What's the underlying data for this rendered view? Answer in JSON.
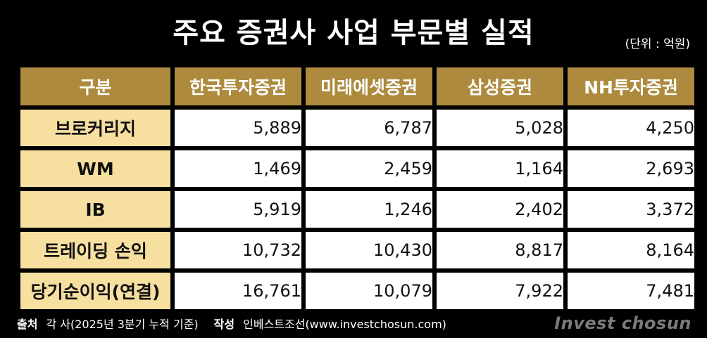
{
  "title": "주요 증권사 사업 부문별 실적",
  "unit": "(단위 : 억원)",
  "chart_data": {
    "type": "table",
    "title": "주요 증권사 사업 부문별 실적",
    "unit": "(단위 : 억원)",
    "corner_label": "구분",
    "columns": [
      "한국투자증권",
      "미래에셋증권",
      "삼성증권",
      "NH투자증권"
    ],
    "rows": [
      {
        "label": "브로커리지",
        "values": [
          "5,889",
          "6,787",
          "5,028",
          "4,250"
        ]
      },
      {
        "label": "WM",
        "values": [
          "1,469",
          "2,459",
          "1,164",
          "2,693"
        ]
      },
      {
        "label": "IB",
        "values": [
          "5,919",
          "1,246",
          "2,402",
          "3,372"
        ]
      },
      {
        "label": "트레이딩 손익",
        "values": [
          "10,732",
          "10,430",
          "8,817",
          "8,164"
        ]
      },
      {
        "label": "당기순이익(연결)",
        "values": [
          "16,761",
          "10,079",
          "7,922",
          "7,481"
        ]
      }
    ]
  },
  "footer": {
    "source_label": "출처",
    "source_text": "각 사(2025년 3분기 누적 기준)",
    "author_label": "작성",
    "author_text": "인베스트조선(www.investchosun.com)",
    "logo": "Invest chosun"
  },
  "colors": {
    "background": "#000000",
    "header_bg": "#ad8a3d",
    "row_label_bg": "#f7dfa0",
    "cell_bg": "#ffffff"
  }
}
